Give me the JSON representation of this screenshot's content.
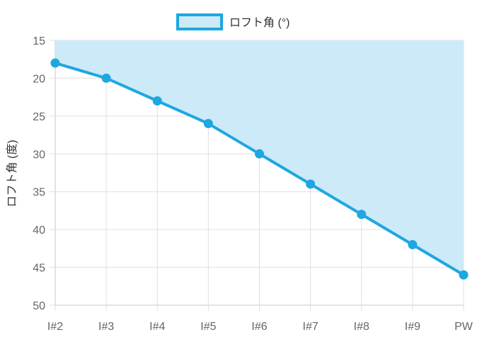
{
  "chart_data": {
    "type": "area",
    "categories": [
      "I#2",
      "I#3",
      "I#4",
      "I#5",
      "I#6",
      "I#7",
      "I#8",
      "I#9",
      "PW"
    ],
    "series": [
      {
        "name": "ロフト角 (°)",
        "values": [
          18,
          20,
          23,
          26,
          30,
          34,
          38,
          42,
          46
        ]
      }
    ],
    "title": "",
    "xlabel": "",
    "ylabel": "ロフト角 (度)",
    "ylim": [
      15,
      50
    ],
    "y_reversed": true,
    "y_ticks": [
      15,
      20,
      25,
      30,
      35,
      40,
      45,
      50
    ],
    "grid": true,
    "legend_position": "top-center",
    "colors": {
      "line": "#1ea7e1",
      "fill": "#cdeaf8",
      "grid": "#e0e0e0"
    }
  }
}
